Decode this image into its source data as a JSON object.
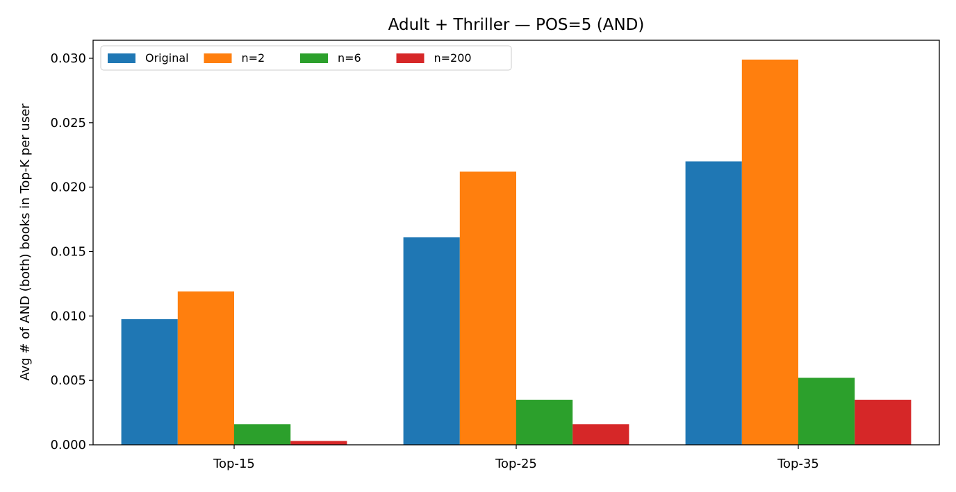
{
  "chart_data": {
    "type": "bar",
    "title": "Adult + Thriller — POS=5 (AND)",
    "xlabel": "",
    "ylabel": "Avg # of AND (both) books in Top-K per user",
    "categories": [
      "Top-15",
      "Top-25",
      "Top-35"
    ],
    "series": [
      {
        "name": "Original",
        "color": "#1f77b4",
        "values": [
          0.00975,
          0.0161,
          0.022
        ]
      },
      {
        "name": "n=2",
        "color": "#ff7f0e",
        "values": [
          0.0119,
          0.0212,
          0.0299
        ]
      },
      {
        "name": "n=6",
        "color": "#2ca02c",
        "values": [
          0.0016,
          0.0035,
          0.0052
        ]
      },
      {
        "name": "n=200",
        "color": "#d62728",
        "values": [
          0.0003,
          0.0016,
          0.0035
        ]
      }
    ],
    "ylim": [
      0,
      0.0314
    ],
    "yticks": [
      0.0,
      0.005,
      0.01,
      0.015,
      0.02,
      0.025,
      0.03
    ],
    "ytick_labels": [
      "0.000",
      "0.005",
      "0.010",
      "0.015",
      "0.020",
      "0.025",
      "0.030"
    ],
    "grid": false,
    "legend": {
      "position": "top-left",
      "columns": 4
    }
  }
}
